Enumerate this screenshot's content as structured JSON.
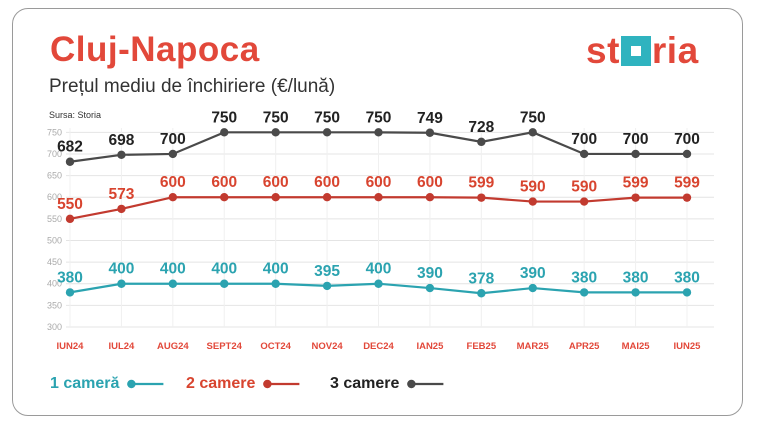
{
  "header": {
    "title": "Cluj-Napoca",
    "subtitle": "Prețul mediu de închiriere (€/lună)",
    "source": "Sursa: Storia"
  },
  "logo": {
    "text_left": "st",
    "text_right": "ria",
    "accent_color": "#2fb3bf",
    "brand_color": "#e2483a"
  },
  "chart_data": {
    "type": "line",
    "categories": [
      "IUN24",
      "IUL24",
      "AUG24",
      "SEPT24",
      "OCT24",
      "NOV24",
      "DEC24",
      "IAN25",
      "FEB25",
      "MAR25",
      "APR25",
      "MAI25",
      "IUN25"
    ],
    "y_ticks": [
      300,
      350,
      400,
      450,
      500,
      550,
      600,
      650,
      700,
      750
    ],
    "ylim": [
      300,
      760
    ],
    "grid": true,
    "legend_position": "bottom",
    "series": [
      {
        "name": "3 camere",
        "color": "#4a4a4a",
        "label_color": "#222222",
        "values": [
          682,
          698,
          700,
          750,
          750,
          750,
          750,
          749,
          728,
          750,
          700,
          700,
          700
        ]
      },
      {
        "name": "2 camere",
        "color": "#c23a2f",
        "label_color": "#d8442f",
        "values": [
          550,
          573,
          600,
          600,
          600,
          600,
          600,
          600,
          599,
          590,
          590,
          599,
          599
        ]
      },
      {
        "name": "1 cameră",
        "color": "#2ba3b0",
        "label_color": "#2ba3b0",
        "values": [
          380,
          400,
          400,
          400,
          400,
          395,
          400,
          390,
          378,
          390,
          380,
          380,
          380
        ]
      }
    ]
  }
}
